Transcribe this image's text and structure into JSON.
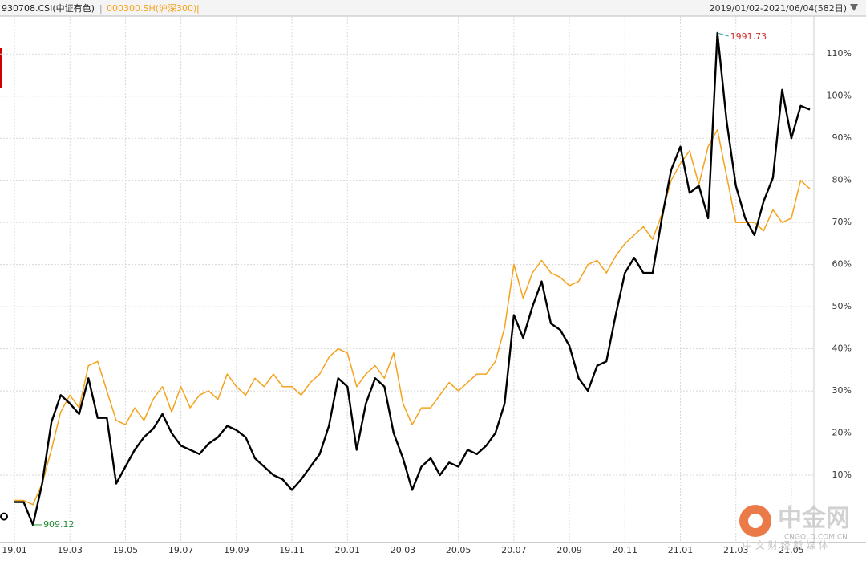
{
  "chart_data": {
    "type": "line",
    "subtitle": "2019/01/02-2021/06/04(582日)",
    "categories": [
      "19.01",
      null,
      null,
      null,
      null,
      null,
      "19.03",
      null,
      null,
      null,
      null,
      null,
      "19.05",
      null,
      null,
      null,
      null,
      null,
      "19.07",
      null,
      null,
      null,
      null,
      null,
      "19.09",
      null,
      null,
      null,
      null,
      null,
      "19.11",
      null,
      null,
      null,
      null,
      null,
      "20.01",
      null,
      null,
      null,
      null,
      null,
      "20.03",
      null,
      null,
      null,
      null,
      null,
      "20.05",
      null,
      null,
      null,
      null,
      null,
      "20.07",
      null,
      null,
      null,
      null,
      null,
      "20.09",
      null,
      null,
      null,
      null,
      null,
      "20.11",
      null,
      null,
      null,
      null,
      null,
      "21.01",
      null,
      null,
      null,
      null,
      null,
      "21.03",
      null,
      null,
      null,
      null,
      null,
      "21.05",
      null,
      null
    ],
    "series": [
      {
        "name": "930708.CSI(中证有色)",
        "color": "#000000",
        "values": [
          3.6,
          3.6,
          -1.8,
          8,
          22.6,
          29,
          27,
          24.5,
          33,
          23.6,
          23.6,
          8,
          12,
          16,
          19,
          21,
          24.5,
          20,
          17,
          16,
          15,
          17.5,
          19,
          21.7,
          20.7,
          19,
          14,
          12,
          10,
          9,
          6.5,
          9,
          12,
          15,
          21.7,
          33,
          31,
          16,
          27,
          33,
          31,
          20,
          14,
          6.5,
          12,
          14,
          10,
          13,
          12,
          16,
          15,
          17,
          20,
          27,
          48,
          42.6,
          50,
          56,
          46,
          44.5,
          40.7,
          33,
          30,
          36,
          37,
          48,
          58,
          61.6,
          58,
          58,
          71,
          82.5,
          88,
          77,
          78.7,
          71,
          115,
          94,
          78.7,
          71,
          67,
          75,
          80.6,
          101.5,
          90,
          97.7,
          96.8
        ]
      },
      {
        "name": "000300.SH(沪深300)",
        "color": "#f5a21b",
        "values": [
          4,
          4,
          3,
          8,
          16,
          25,
          29,
          26,
          36,
          37,
          30,
          23,
          22,
          26,
          23,
          28,
          31,
          25,
          31,
          26,
          29,
          30,
          28,
          34,
          31,
          29,
          33,
          31,
          34,
          31,
          31,
          29,
          32,
          34,
          38,
          40,
          39,
          31,
          34,
          36,
          33,
          39,
          27,
          22,
          26,
          26,
          29,
          32,
          30,
          32,
          34,
          34,
          37,
          45,
          60,
          52,
          58,
          61,
          58,
          57,
          55,
          56,
          60,
          61,
          58,
          62,
          65,
          67,
          69,
          66,
          72,
          80,
          84,
          87,
          79,
          88,
          92,
          81,
          70,
          70,
          70,
          68,
          73,
          70,
          71,
          80,
          78
        ]
      }
    ],
    "annotations": [
      "1991.73",
      "909.12"
    ],
    "ylim": [
      -6,
      119
    ],
    "yticks": [
      {
        "value": 10,
        "label": "10%"
      },
      {
        "value": 20,
        "label": "20%"
      },
      {
        "value": 30,
        "label": "30%"
      },
      {
        "value": 40,
        "label": "40%"
      },
      {
        "value": 50,
        "label": "50%"
      },
      {
        "value": 60,
        "label": "60%"
      },
      {
        "value": 70,
        "label": "70%"
      },
      {
        "value": 80,
        "label": "80%"
      },
      {
        "value": 90,
        "label": "90%"
      },
      {
        "value": 100,
        "label": "100%"
      },
      {
        "value": 110,
        "label": "110%"
      }
    ],
    "grid": true
  },
  "watermark": {
    "logo": "中金网",
    "url": "CNGOLD.COM.CN",
    "slogan": "中 文 财 经 新 媒 体"
  }
}
